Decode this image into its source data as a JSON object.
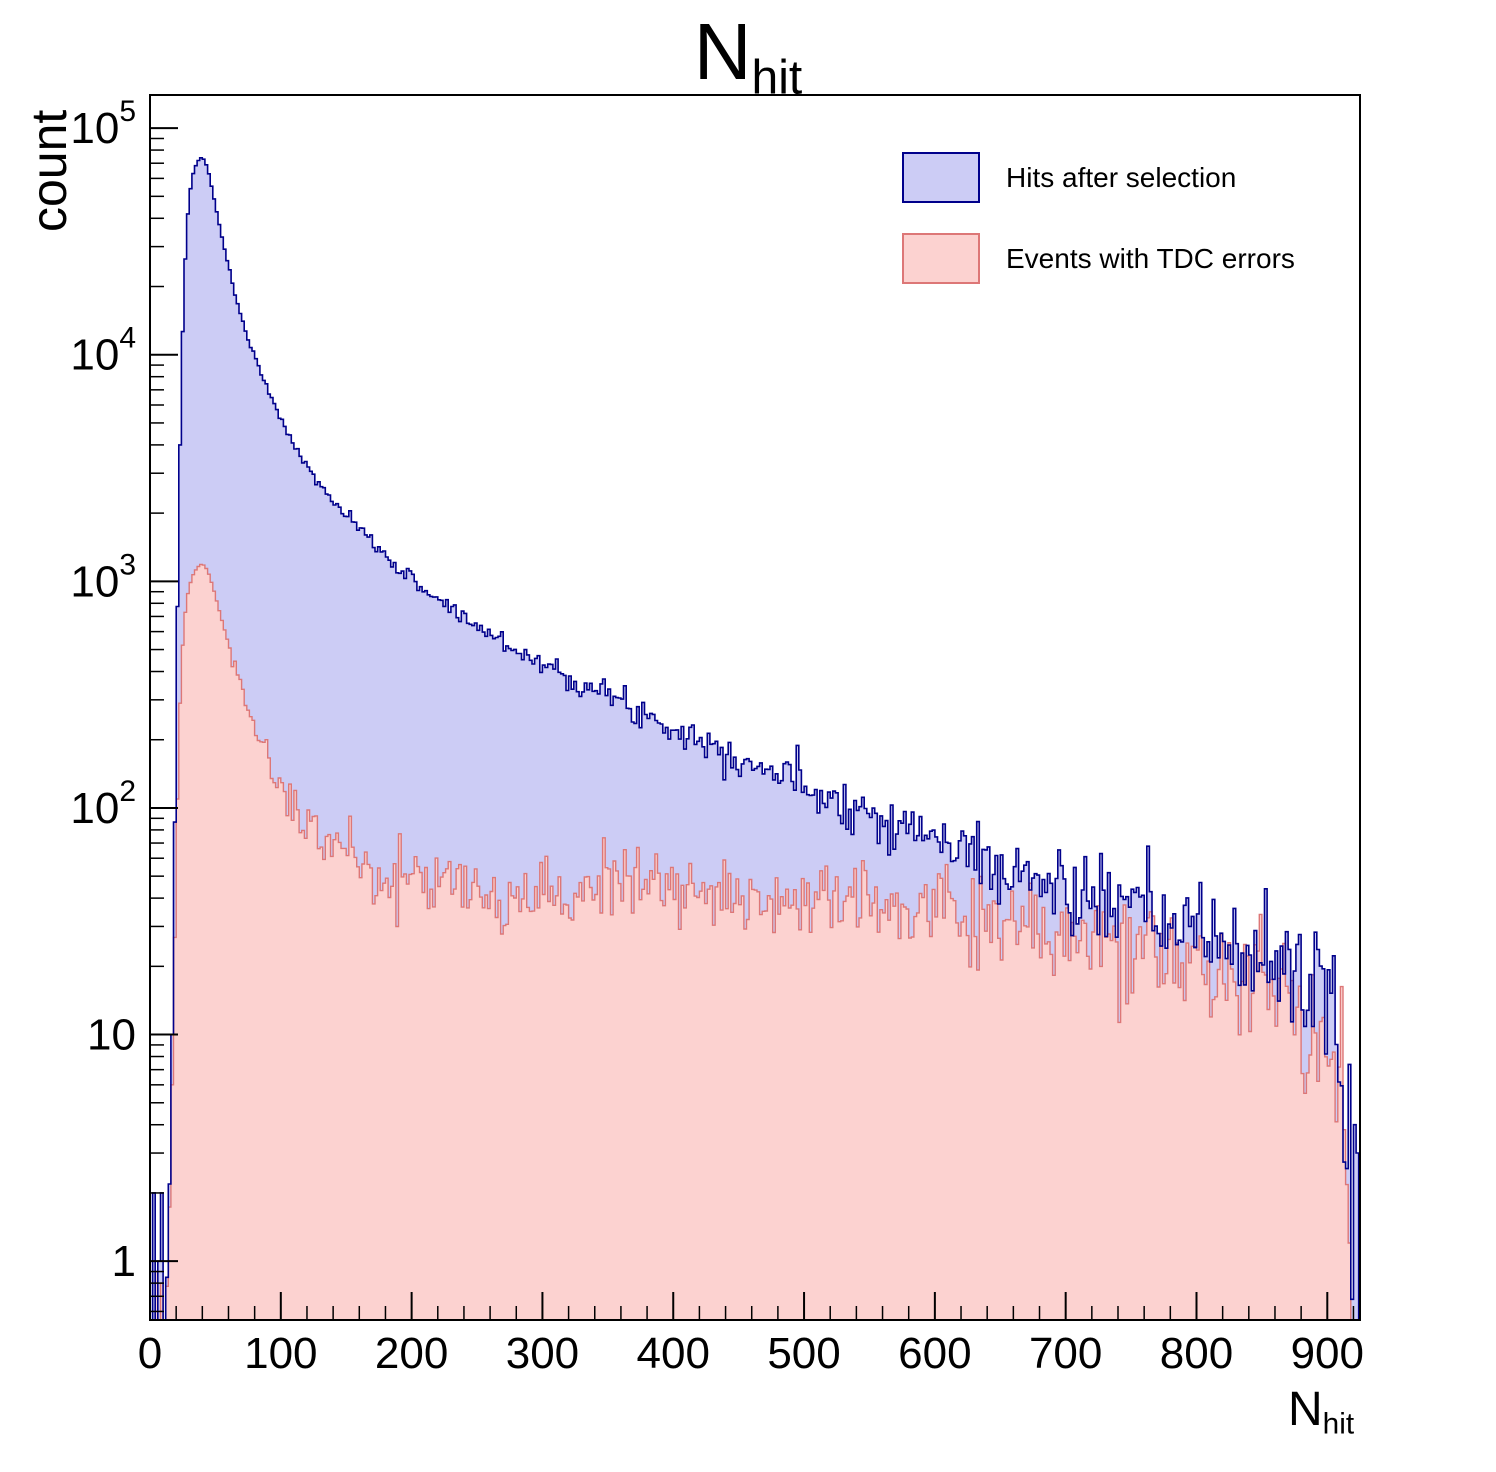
{
  "title": {
    "main": "N",
    "sub": "hit"
  },
  "axes": {
    "x": {
      "label_main": "N",
      "label_sub": "hit",
      "min": 0,
      "max": 925,
      "major_ticks": [
        0,
        100,
        200,
        300,
        400,
        500,
        600,
        700,
        800,
        900
      ],
      "minor_step": 20
    },
    "y": {
      "label": "count",
      "scale": "log",
      "min": 0.55,
      "max": 140000,
      "ticks": [
        {
          "value": 1,
          "label": "1"
        },
        {
          "value": 10,
          "label": "10"
        },
        {
          "value": 100,
          "label": "10",
          "exp": "2"
        },
        {
          "value": 1000,
          "label": "10",
          "exp": "3"
        },
        {
          "value": 10000,
          "label": "10",
          "exp": "4"
        },
        {
          "value": 100000,
          "label": "10",
          "exp": "5"
        }
      ]
    }
  },
  "legend": {
    "entries": [
      {
        "label": "Hits after selection"
      },
      {
        "label": "Events with TDC errors"
      }
    ]
  },
  "chart_data": {
    "type": "histogram",
    "title": "N_hit",
    "xlabel": "N_hit",
    "ylabel": "count",
    "y_scale": "log",
    "x_range": [
      0,
      925
    ],
    "bin_width": 2,
    "noise_seed": 7,
    "series": [
      {
        "name": "Hits after selection",
        "fill": "#ccccf5",
        "line": "#00008b",
        "anchors": [
          [
            12,
            0.6
          ],
          [
            14,
            1.2
          ],
          [
            16,
            4
          ],
          [
            18,
            25
          ],
          [
            20,
            300
          ],
          [
            22,
            2000
          ],
          [
            24,
            8000
          ],
          [
            26,
            20000
          ],
          [
            28,
            35000
          ],
          [
            30,
            50000
          ],
          [
            33,
            63000
          ],
          [
            36,
            71000
          ],
          [
            40,
            75000
          ],
          [
            44,
            67000
          ],
          [
            48,
            52000
          ],
          [
            52,
            40000
          ],
          [
            56,
            31000
          ],
          [
            60,
            24500
          ],
          [
            65,
            18500
          ],
          [
            70,
            14500
          ],
          [
            75,
            11800
          ],
          [
            80,
            9800
          ],
          [
            85,
            8200
          ],
          [
            90,
            7000
          ],
          [
            95,
            6000
          ],
          [
            100,
            5200
          ],
          [
            110,
            4000
          ],
          [
            120,
            3200
          ],
          [
            130,
            2650
          ],
          [
            140,
            2250
          ],
          [
            150,
            1950
          ],
          [
            160,
            1700
          ],
          [
            170,
            1480
          ],
          [
            180,
            1300
          ],
          [
            190,
            1150
          ],
          [
            200,
            1020
          ],
          [
            215,
            880
          ],
          [
            230,
            760
          ],
          [
            245,
            660
          ],
          [
            260,
            585
          ],
          [
            275,
            520
          ],
          [
            290,
            465
          ],
          [
            305,
            420
          ],
          [
            320,
            380
          ],
          [
            335,
            345
          ],
          [
            350,
            312
          ],
          [
            365,
            284
          ],
          [
            380,
            258
          ],
          [
            395,
            235
          ],
          [
            410,
            214
          ],
          [
            425,
            196
          ],
          [
            440,
            179
          ],
          [
            455,
            164
          ],
          [
            470,
            150
          ],
          [
            485,
            138
          ],
          [
            500,
            127
          ],
          [
            515,
            116
          ],
          [
            530,
            107
          ],
          [
            545,
            98
          ],
          [
            560,
            91
          ],
          [
            575,
            84
          ],
          [
            590,
            77
          ],
          [
            605,
            71
          ],
          [
            620,
            66
          ],
          [
            635,
            61
          ],
          [
            650,
            54
          ],
          [
            665,
            50
          ],
          [
            680,
            47
          ],
          [
            695,
            44
          ],
          [
            710,
            41
          ],
          [
            725,
            39
          ],
          [
            740,
            36
          ],
          [
            755,
            34
          ],
          [
            770,
            32
          ],
          [
            785,
            30
          ],
          [
            800,
            28
          ],
          [
            815,
            26
          ],
          [
            830,
            24
          ],
          [
            845,
            22
          ],
          [
            860,
            21
          ],
          [
            875,
            19
          ],
          [
            890,
            16
          ],
          [
            900,
            13
          ],
          [
            904,
            11
          ],
          [
            908,
            9
          ],
          [
            912,
            6
          ],
          [
            916,
            3
          ],
          [
            918,
            1.2
          ],
          [
            919,
            0.5
          ]
        ],
        "spikes": [
          [
            2,
            2
          ],
          [
            6,
            1
          ],
          [
            8,
            2
          ],
          [
            920,
            4
          ],
          [
            922,
            3
          ]
        ]
      },
      {
        "name": "Events with TDC errors",
        "fill": "#fcd2d0",
        "line": "#dd7777",
        "anchors": [
          [
            12,
            0.6
          ],
          [
            14,
            1
          ],
          [
            16,
            3
          ],
          [
            18,
            12
          ],
          [
            20,
            60
          ],
          [
            22,
            200
          ],
          [
            24,
            420
          ],
          [
            26,
            650
          ],
          [
            28,
            820
          ],
          [
            30,
            950
          ],
          [
            33,
            1070
          ],
          [
            36,
            1150
          ],
          [
            40,
            1200
          ],
          [
            44,
            1120
          ],
          [
            48,
            950
          ],
          [
            52,
            780
          ],
          [
            56,
            640
          ],
          [
            60,
            530
          ],
          [
            65,
            420
          ],
          [
            70,
            340
          ],
          [
            75,
            280
          ],
          [
            80,
            235
          ],
          [
            85,
            200
          ],
          [
            90,
            172
          ],
          [
            95,
            150
          ],
          [
            100,
            132
          ],
          [
            110,
            105
          ],
          [
            120,
            88
          ],
          [
            130,
            76
          ],
          [
            140,
            67
          ],
          [
            150,
            61
          ],
          [
            160,
            56
          ],
          [
            170,
            53
          ],
          [
            180,
            50
          ],
          [
            190,
            48
          ],
          [
            200,
            47
          ],
          [
            220,
            45
          ],
          [
            240,
            44
          ],
          [
            260,
            44
          ],
          [
            280,
            43
          ],
          [
            300,
            44
          ],
          [
            320,
            43
          ],
          [
            340,
            44
          ],
          [
            360,
            43
          ],
          [
            380,
            44
          ],
          [
            400,
            43
          ],
          [
            420,
            43
          ],
          [
            440,
            42
          ],
          [
            460,
            42
          ],
          [
            480,
            41
          ],
          [
            500,
            40
          ],
          [
            520,
            39
          ],
          [
            540,
            38
          ],
          [
            560,
            37
          ],
          [
            580,
            36
          ],
          [
            600,
            35
          ],
          [
            620,
            34
          ],
          [
            640,
            32
          ],
          [
            660,
            31
          ],
          [
            680,
            30
          ],
          [
            700,
            28
          ],
          [
            720,
            27
          ],
          [
            740,
            25
          ],
          [
            760,
            24
          ],
          [
            780,
            22
          ],
          [
            800,
            21
          ],
          [
            820,
            19
          ],
          [
            840,
            18
          ],
          [
            860,
            16
          ],
          [
            875,
            14
          ],
          [
            890,
            12
          ],
          [
            900,
            10
          ],
          [
            904,
            9
          ],
          [
            908,
            7
          ],
          [
            912,
            5
          ],
          [
            916,
            2.5
          ],
          [
            918,
            1
          ],
          [
            919,
            0.5
          ]
        ],
        "spikes": [
          [
            4,
            0.9
          ],
          [
            8,
            0.8
          ]
        ]
      }
    ]
  }
}
